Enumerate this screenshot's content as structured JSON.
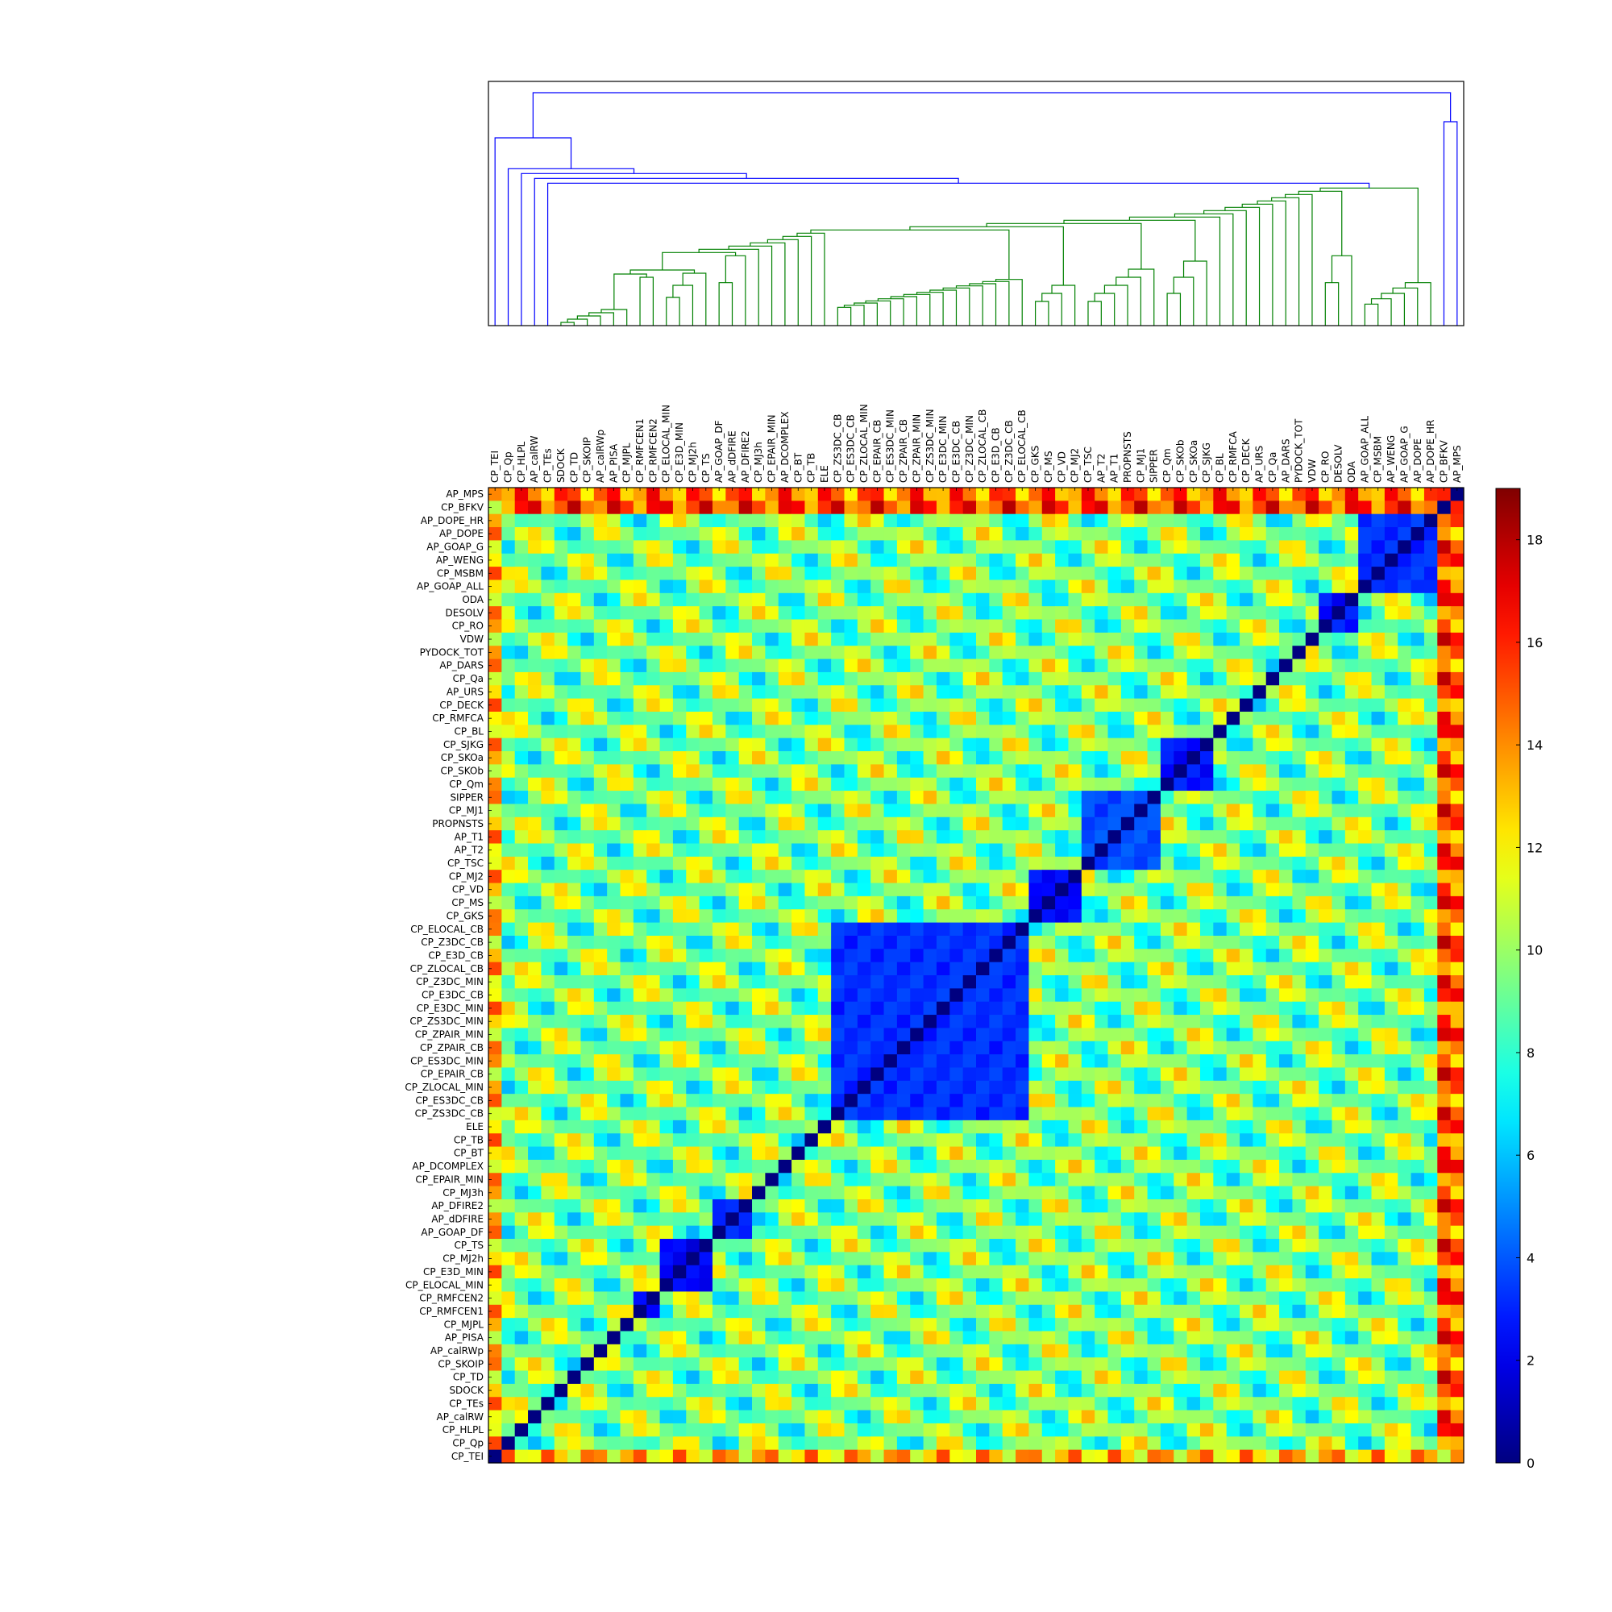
{
  "chart_data": {
    "type": "heatmap",
    "title": "",
    "labels": [
      "CP_TEI",
      "CP_Qp",
      "CP_HLPL",
      "AP_calRW",
      "CP_TEs",
      "SDOCK",
      "CP_TD",
      "CP_SKOIP",
      "AP_calRWp",
      "AP_PISA",
      "CP_MJPL",
      "CP_RMFCEN1",
      "CP_RMFCEN2",
      "CP_ELOCAL_MIN",
      "CP_E3D_MIN",
      "CP_MJ2h",
      "CP_TS",
      "AP_GOAP_DF",
      "AP_dDFIRE",
      "AP_DFIRE2",
      "CP_MJ3h",
      "CP_EPAIR_MIN",
      "AP_DCOMPLEX",
      "CP_BT",
      "CP_TB",
      "ELE",
      "CP_ZS3DC_CB",
      "CP_ES3DC_CB",
      "CP_ZLOCAL_MIN",
      "CP_EPAIR_CB",
      "CP_ES3DC_MIN",
      "CP_ZPAIR_CB",
      "CP_ZPAIR_MIN",
      "CP_ZS3DC_MIN",
      "CP_E3DC_MIN",
      "CP_E3DC_CB",
      "CP_Z3DC_MIN",
      "CP_ZLOCAL_CB",
      "CP_E3D_CB",
      "CP_Z3DC_CB",
      "CP_ELOCAL_CB",
      "CP_GKS",
      "CP_MS",
      "CP_VD",
      "CP_MJ2",
      "CP_TSC",
      "AP_T2",
      "AP_T1",
      "PROPNSTS",
      "CP_MJ1",
      "SIPPER",
      "CP_Qm",
      "CP_SKOb",
      "CP_SKOa",
      "CP_SJKG",
      "CP_BL",
      "CP_RMFCA",
      "CP_DECK",
      "AP_URS",
      "CP_Qa",
      "AP_DARS",
      "PYDOCK_TOT",
      "VDW",
      "CP_RO",
      "DESOLV",
      "ODA",
      "AP_GOAP_ALL",
      "CP_MSBM",
      "AP_WENG",
      "AP_GOAP_G",
      "AP_DOPE",
      "AP_DOPE_HR",
      "CP_BFKV",
      "AP_MPS"
    ],
    "colorbar": {
      "min": 0,
      "max": 19,
      "ticks": [
        0,
        2,
        4,
        6,
        8,
        10,
        12,
        14,
        16,
        18
      ],
      "colormap": "jet"
    },
    "groups": [
      {
        "members": [
          "CP_ZS3DC_CB",
          "CP_ES3DC_CB",
          "CP_ZLOCAL_MIN",
          "CP_EPAIR_CB",
          "CP_ES3DC_MIN",
          "CP_ZPAIR_CB",
          "CP_ZPAIR_MIN",
          "CP_ZS3DC_MIN",
          "CP_E3DC_MIN",
          "CP_E3DC_CB",
          "CP_Z3DC_MIN",
          "CP_ZLOCAL_CB",
          "CP_E3D_CB",
          "CP_Z3DC_CB",
          "CP_ELOCAL_CB"
        ],
        "within_value": 2.5
      },
      {
        "members": [
          "CP_ELOCAL_MIN",
          "CP_E3D_MIN",
          "CP_MJ2h",
          "CP_TS"
        ],
        "within_value": 1.5
      },
      {
        "members": [
          "CP_RMFCEN1",
          "CP_RMFCEN2"
        ],
        "within_value": 1.5
      },
      {
        "members": [
          "AP_GOAP_DF",
          "AP_dDFIRE",
          "AP_DFIRE2"
        ],
        "within_value": 2.5
      },
      {
        "members": [
          "CP_GKS",
          "CP_MS",
          "CP_VD",
          "CP_MJ2"
        ],
        "within_value": 1.8
      },
      {
        "members": [
          "CP_TSC",
          "AP_T2",
          "AP_T1",
          "PROPNSTS",
          "CP_MJ1",
          "SIPPER"
        ],
        "within_value": 3.0
      },
      {
        "members": [
          "CP_Qm",
          "CP_SKOb",
          "CP_SKOa",
          "CP_SJKG"
        ],
        "within_value": 2.0
      },
      {
        "members": [
          "CP_RO",
          "DESOLV",
          "ODA"
        ],
        "within_value": 2.0
      },
      {
        "members": [
          "AP_GOAP_ALL",
          "CP_MSBM",
          "AP_WENG",
          "AP_GOAP_G",
          "AP_DOPE",
          "AP_DOPE_HR"
        ],
        "within_value": 2.5
      },
      {
        "members": [
          "CP_BFKV",
          "AP_MPS"
        ],
        "within_value": 4.0
      }
    ],
    "high_value_rows": [
      {
        "label": "CP_BFKV",
        "typical_value": 15.5
      },
      {
        "label": "AP_MPS",
        "typical_value": 14.5
      },
      {
        "label": "CP_TEI",
        "typical_value": 13.0
      }
    ],
    "off_diagonal_default": 9.5,
    "diagonal_value": 0,
    "dendrogram": {
      "position": "top",
      "leaf_order": "same as labels",
      "link_colors": {
        "root": "#0000ff",
        "cluster": "#008000"
      }
    }
  }
}
